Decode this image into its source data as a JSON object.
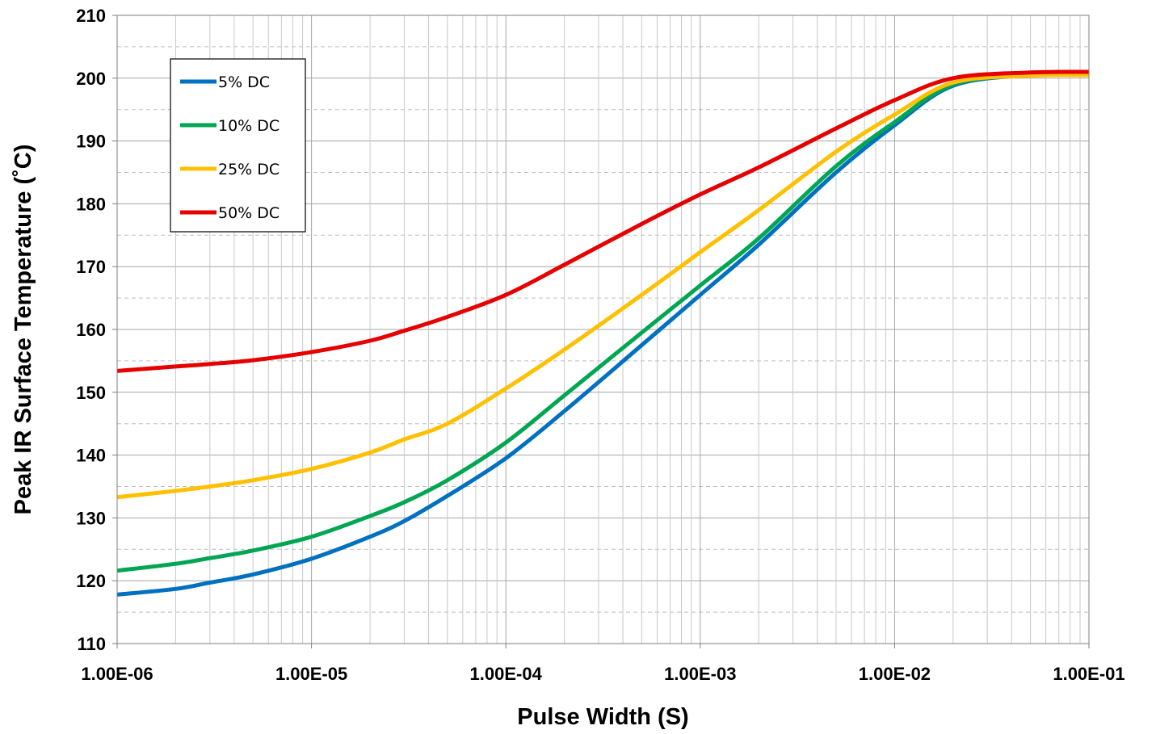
{
  "chart_data": {
    "type": "line",
    "title": "",
    "xlabel": "Pulse Width (S)",
    "ylabel": "Peak IR Surface Temperature (˚C)",
    "x_scale": "log",
    "xlim": [
      1e-06,
      0.1
    ],
    "ylim": [
      110,
      210
    ],
    "x_ticks": [
      1e-06,
      1e-05,
      0.0001,
      0.001,
      0.01,
      0.1
    ],
    "x_tick_labels": [
      "1.00E-06",
      "1.00E-05",
      "1.00E-04",
      "1.00E-03",
      "1.00E-02",
      "1.00E-01"
    ],
    "y_ticks": [
      110,
      120,
      130,
      140,
      150,
      160,
      170,
      180,
      190,
      200,
      210
    ],
    "y_tick_labels": [
      "110",
      "120",
      "130",
      "140",
      "150",
      "160",
      "170",
      "180",
      "190",
      "200",
      "210"
    ],
    "grid": true,
    "legend_position": "top-left",
    "series": [
      {
        "name": "5% DC",
        "color": "#0070C0",
        "x": [
          1e-06,
          2e-06,
          3e-06,
          5e-06,
          1e-05,
          2e-05,
          3e-05,
          5e-05,
          0.0001,
          0.0002,
          0.0005,
          0.001,
          0.002,
          0.005,
          0.01,
          0.02,
          0.05,
          0.1
        ],
        "y": [
          117.8,
          118.7,
          119.7,
          121.0,
          123.5,
          127.0,
          129.5,
          133.5,
          139.5,
          147.0,
          157.5,
          165.5,
          173.5,
          185.0,
          192.5,
          198.8,
          200.5,
          200.6
        ]
      },
      {
        "name": "10% DC",
        "color": "#00A651",
        "x": [
          1e-06,
          2e-06,
          3e-06,
          5e-06,
          1e-05,
          2e-05,
          3e-05,
          5e-05,
          0.0001,
          0.0002,
          0.0005,
          0.001,
          0.002,
          0.005,
          0.01,
          0.02,
          0.05,
          0.1
        ],
        "y": [
          121.6,
          122.7,
          123.6,
          124.8,
          127.0,
          130.3,
          132.5,
          136.0,
          142.0,
          149.5,
          159.5,
          167.0,
          174.5,
          186.0,
          193.0,
          199.0,
          200.5,
          200.6
        ]
      },
      {
        "name": "25% DC",
        "color": "#FFC000",
        "x": [
          1e-06,
          2e-06,
          3e-06,
          5e-06,
          1e-05,
          2e-05,
          3e-05,
          5e-05,
          0.0001,
          0.0002,
          0.0005,
          0.001,
          0.002,
          0.005,
          0.01,
          0.02,
          0.05,
          0.1
        ],
        "y": [
          133.3,
          134.3,
          135.0,
          136.0,
          137.8,
          140.4,
          142.5,
          145.0,
          150.6,
          156.8,
          165.5,
          172.3,
          179.0,
          188.3,
          194.2,
          199.3,
          200.4,
          200.5
        ]
      },
      {
        "name": "50% DC",
        "color": "#E60000",
        "x": [
          1e-06,
          2e-06,
          3e-06,
          5e-06,
          1e-05,
          2e-05,
          3e-05,
          5e-05,
          0.0001,
          0.0002,
          0.0005,
          0.001,
          0.002,
          0.005,
          0.01,
          0.02,
          0.05,
          0.1
        ],
        "y": [
          153.4,
          154.1,
          154.5,
          155.1,
          156.4,
          158.2,
          159.8,
          162.0,
          165.5,
          170.3,
          176.8,
          181.5,
          185.8,
          192.0,
          196.5,
          200.0,
          200.9,
          201.0
        ]
      }
    ]
  }
}
